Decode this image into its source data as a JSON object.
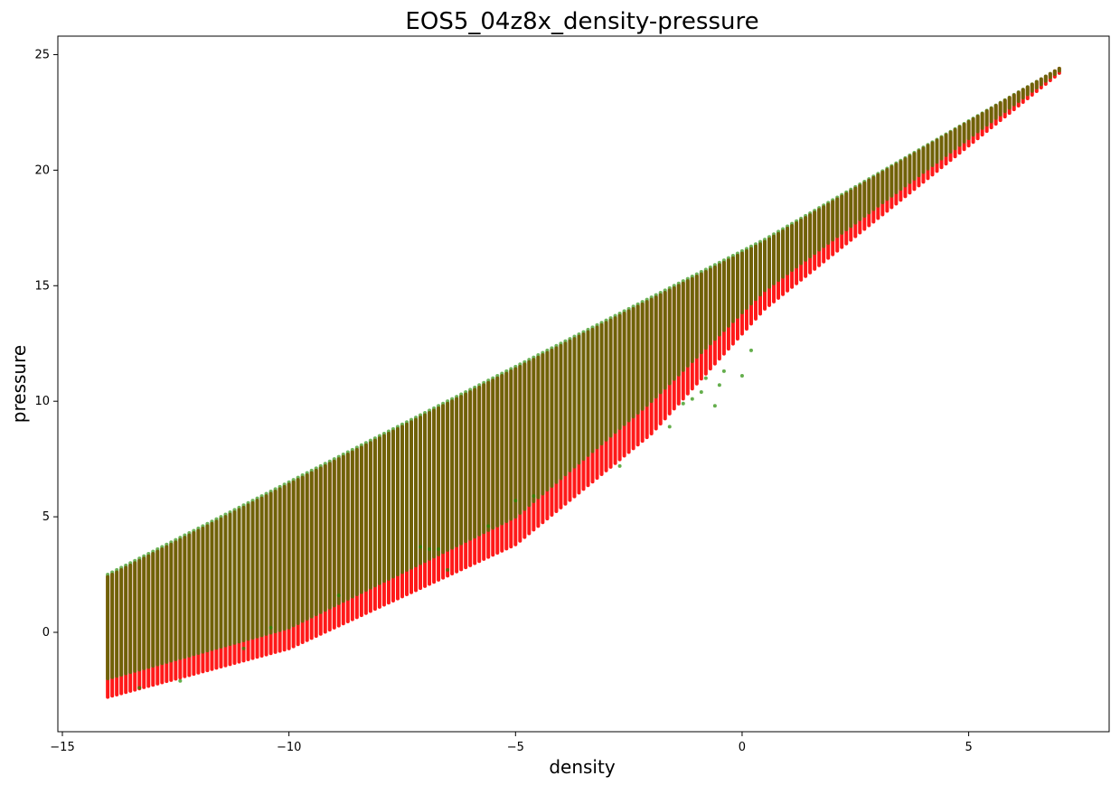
{
  "chart_data": {
    "type": "scatter",
    "title": "EOS5_04z8x_density-pressure",
    "xlabel": "density",
    "ylabel": "pressure",
    "xlim": [
      -15.1,
      8.1
    ],
    "ylim": [
      -4.3,
      25.8
    ],
    "xticks": [
      -15,
      -10,
      -5,
      0,
      5
    ],
    "yticks": [
      0,
      5,
      10,
      15,
      20,
      25
    ],
    "grid": false,
    "legend": "none",
    "colors": {
      "series_a": "#ff0000",
      "series_b": "#228b00"
    },
    "series": [
      {
        "columns_x_range": [
          -14.0,
          7.0
        ],
        "columns_step": 0.1,
        "top_line": {
          "x": [
            -14.0,
            0.5,
            7.0
          ],
          "y": [
            2.4,
            16.9,
            24.4
          ]
        },
        "bottom_line": {
          "x": [
            -14.0,
            -10.0,
            -5.0,
            -2.0,
            0.5,
            7.0
          ],
          "y": [
            -2.8,
            -0.7,
            3.8,
            8.6,
            14.0,
            24.2
          ]
        }
      },
      {
        "columns_x_range": [
          -14.0,
          7.0
        ],
        "columns_step": 0.1,
        "top_line": {
          "x": [
            -14.0,
            0.5,
            7.0
          ],
          "y": [
            2.5,
            17.0,
            24.4
          ]
        },
        "bottom_line": {
          "x": [
            -14.0,
            -10.0,
            -5.0,
            -2.0,
            0.5,
            7.0
          ],
          "y": [
            -2.0,
            0.2,
            5.0,
            10.0,
            14.8,
            24.3
          ]
        },
        "outliers": {
          "x": [
            -13.3,
            -12.4,
            -11.0,
            -10.4,
            -8.9,
            -7.1,
            -6.9,
            -6.7,
            -6.5,
            -5.6,
            -5.0,
            -4.6,
            -2.7,
            -1.6,
            -1.3,
            -1.1,
            -0.9,
            -0.8,
            -0.6,
            -0.5,
            -0.4,
            0.0,
            0.2
          ],
          "y": [
            -2.4,
            -2.1,
            -0.7,
            0.2,
            1.6,
            3.7,
            3.6,
            3.6,
            2.7,
            4.6,
            5.7,
            5.9,
            7.2,
            8.9,
            9.9,
            10.1,
            10.4,
            11.0,
            9.8,
            10.7,
            11.3,
            11.1,
            12.2
          ]
        }
      }
    ]
  }
}
